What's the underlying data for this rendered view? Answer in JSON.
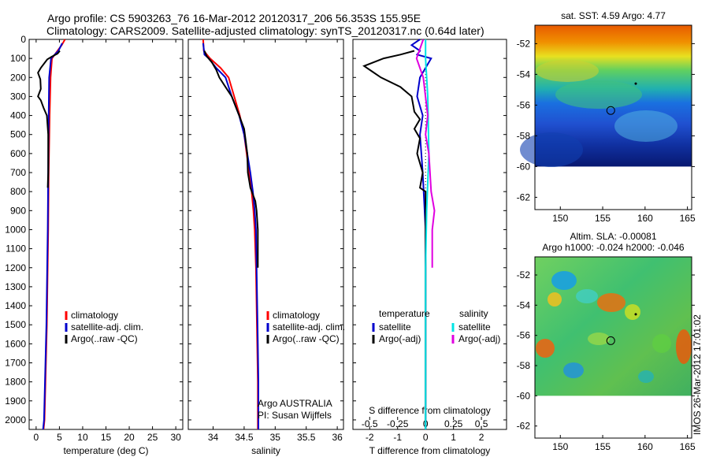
{
  "header": {
    "line1": "Argo profile: CS 5903263_76 16-Mar-2012 20120317_206 56.353S 155.95E",
    "line2": "Climatology: CARS2009. Satellite-adjusted climatology: synTS_20120317.nc (0.64d later)"
  },
  "depth_ticks": [
    0,
    100,
    200,
    300,
    400,
    500,
    600,
    700,
    800,
    900,
    1000,
    1100,
    1200,
    1300,
    1400,
    1500,
    1600,
    1700,
    1800,
    1900,
    2000
  ],
  "chart_data": [
    {
      "type": "line",
      "id": "temperature",
      "xlabel": "temperature (deg C)",
      "ylabel": "",
      "xlim": [
        -1.5,
        31.5
      ],
      "ylim": [
        2050,
        0
      ],
      "xticks": [
        0,
        5,
        10,
        15,
        20,
        25,
        30
      ],
      "legend": [
        "climatology",
        "satellite-adj. clim.",
        "Argo(..raw -QC)"
      ],
      "series": [
        {
          "name": "climatology",
          "color": "#ff0000",
          "points": [
            [
              6.2,
              0
            ],
            [
              5.5,
              30
            ],
            [
              4.6,
              60
            ],
            [
              3.4,
              100
            ],
            [
              3.1,
              200
            ],
            [
              2.9,
              400
            ],
            [
              2.7,
              700
            ],
            [
              2.6,
              1000
            ],
            [
              2.3,
              1500
            ],
            [
              2.0,
              1800
            ],
            [
              1.8,
              2000
            ],
            [
              1.6,
              2050
            ]
          ]
        },
        {
          "name": "satellite-adj. clim.",
          "color": "#0000cc",
          "points": [
            [
              5.6,
              20
            ],
            [
              4.8,
              60
            ],
            [
              3.2,
              100
            ],
            [
              2.8,
              200
            ],
            [
              2.7,
              400
            ],
            [
              2.6,
              700
            ],
            [
              2.5,
              1000
            ],
            [
              2.2,
              1500
            ],
            [
              1.9,
              1800
            ],
            [
              1.7,
              2000
            ],
            [
              1.5,
              2050
            ]
          ]
        },
        {
          "name": "Argo(..raw -QC)",
          "color": "#000000",
          "points": [
            [
              5.1,
              60
            ],
            [
              4.6,
              75
            ],
            [
              3.4,
              90
            ],
            [
              2.4,
              105
            ],
            [
              1.0,
              150
            ],
            [
              0.4,
              175
            ],
            [
              0.9,
              210
            ],
            [
              1.0,
              260
            ],
            [
              0.4,
              300
            ],
            [
              1.0,
              320
            ],
            [
              1.6,
              360
            ],
            [
              2.3,
              400
            ],
            [
              2.6,
              500
            ],
            [
              2.6,
              700
            ],
            [
              2.5,
              780
            ]
          ]
        }
      ]
    },
    {
      "type": "line",
      "id": "salinity",
      "xlabel": "salinity",
      "ylabel": "",
      "xlim": [
        33.6,
        36.1
      ],
      "ylim": [
        2050,
        0
      ],
      "xticks": [
        34,
        34.5,
        35,
        35.5,
        36
      ],
      "xticklabels": [
        "34",
        "34.5",
        "35",
        "35.5",
        "36"
      ],
      "legend": [
        "climatology",
        "satellite-adj. clim.",
        "Argo(..raw -QC)"
      ],
      "footer": [
        "Argo AUSTRALIA",
        "PI: Susan Wijffels"
      ],
      "series": [
        {
          "name": "climatology",
          "color": "#ff0000",
          "points": [
            [
              33.84,
              0
            ],
            [
              33.85,
              60
            ],
            [
              33.95,
              100
            ],
            [
              34.12,
              150
            ],
            [
              34.25,
              200
            ],
            [
              34.34,
              300
            ],
            [
              34.43,
              400
            ],
            [
              34.5,
              500
            ],
            [
              34.54,
              600
            ],
            [
              34.58,
              700
            ],
            [
              34.62,
              800
            ],
            [
              34.65,
              900
            ],
            [
              34.67,
              1000
            ],
            [
              34.69,
              1200
            ],
            [
              34.7,
              1400
            ],
            [
              34.71,
              1600
            ],
            [
              34.72,
              1800
            ],
            [
              34.72,
              2000
            ],
            [
              34.72,
              2050
            ]
          ]
        },
        {
          "name": "satellite-adj. clim.",
          "color": "#0000cc",
          "points": [
            [
              33.84,
              20
            ],
            [
              33.86,
              80
            ],
            [
              33.93,
              100
            ],
            [
              34.05,
              150
            ],
            [
              34.2,
              200
            ],
            [
              34.3,
              300
            ],
            [
              34.42,
              400
            ],
            [
              34.5,
              500
            ],
            [
              34.55,
              600
            ],
            [
              34.6,
              700
            ],
            [
              34.64,
              800
            ],
            [
              34.67,
              900
            ],
            [
              34.69,
              1000
            ],
            [
              34.7,
              1200
            ],
            [
              34.71,
              1400
            ],
            [
              34.72,
              1600
            ],
            [
              34.73,
              1800
            ],
            [
              34.73,
              2000
            ],
            [
              34.73,
              2050
            ]
          ]
        },
        {
          "name": "Argo(..raw -QC)",
          "color": "#000000",
          "points": [
            [
              33.86,
              60
            ],
            [
              33.9,
              90
            ],
            [
              33.98,
              120
            ],
            [
              34.05,
              160
            ],
            [
              34.1,
              200
            ],
            [
              34.2,
              250
            ],
            [
              34.3,
              300
            ],
            [
              34.42,
              400
            ],
            [
              34.5,
              470
            ],
            [
              34.52,
              520
            ],
            [
              34.55,
              600
            ],
            [
              34.56,
              700
            ],
            [
              34.6,
              780
            ],
            [
              34.68,
              850
            ],
            [
              34.7,
              900
            ],
            [
              34.72,
              1000
            ],
            [
              34.72,
              1100
            ],
            [
              34.72,
              1200
            ]
          ]
        }
      ]
    },
    {
      "type": "line",
      "id": "difference",
      "xlabel": "T difference from climatology",
      "xlabel_top": "S difference from climatology",
      "ylabel": "",
      "xlim": [
        -2.6,
        2.9
      ],
      "ylim": [
        2050,
        0
      ],
      "xticks": [
        -2,
        -1,
        0,
        1,
        2
      ],
      "xticks_top": [
        -0.5,
        -0.25,
        0,
        0.25,
        0.5
      ],
      "xticklabels_top": [
        "-0.5",
        "-0.25",
        "0",
        "0.25",
        "0.5"
      ],
      "legend_left_header": "temperature",
      "legend_right_header": "salinity",
      "legend_left": [
        "satellite",
        "Argo(-adj)"
      ],
      "legend_right": [
        "satellite",
        "Argo(-adj)"
      ],
      "series": [
        {
          "name": "T satellite",
          "color": "#0000cc",
          "points": [
            [
              -0.2,
              0
            ],
            [
              -0.5,
              30
            ],
            [
              -0.2,
              60
            ],
            [
              -0.3,
              80
            ],
            [
              0.2,
              100
            ],
            [
              -0.2,
              200
            ],
            [
              -0.3,
              300
            ],
            [
              -0.1,
              400
            ],
            [
              -0.2,
              500
            ],
            [
              -0.1,
              700
            ],
            [
              0,
              1000
            ],
            [
              0,
              1500
            ],
            [
              0,
              2050
            ]
          ]
        },
        {
          "name": "T Argo(-adj)",
          "color": "#000000",
          "points": [
            [
              -0.4,
              60
            ],
            [
              -0.9,
              80
            ],
            [
              -1.5,
              100
            ],
            [
              -2.2,
              140
            ],
            [
              -1.9,
              170
            ],
            [
              -1.6,
              200
            ],
            [
              -0.9,
              250
            ],
            [
              -0.5,
              300
            ],
            [
              -0.4,
              380
            ],
            [
              -0.2,
              420
            ],
            [
              -0.4,
              470
            ],
            [
              -0.2,
              520
            ],
            [
              -0.3,
              600
            ],
            [
              -0.1,
              700
            ],
            [
              -0.2,
              780
            ],
            [
              0,
              800
            ],
            [
              0,
              1200
            ],
            [
              0,
              2050
            ]
          ]
        },
        {
          "name": "S satellite",
          "color": "#00e5e5",
          "points": [
            [
              0,
              0
            ],
            [
              0,
              100
            ],
            [
              0.02,
              300
            ],
            [
              0.03,
              600
            ],
            [
              0.01,
              900
            ],
            [
              0,
              1200
            ],
            [
              0,
              1600
            ],
            [
              0,
              2050
            ]
          ]
        },
        {
          "name": "S Argo(-adj)",
          "color": "#e000e0",
          "points": [
            [
              -0.02,
              0
            ],
            [
              -0.08,
              100
            ],
            [
              -0.02,
              200
            ],
            [
              0.02,
              400
            ],
            [
              0,
              500
            ],
            [
              0.03,
              600
            ],
            [
              0.05,
              800
            ],
            [
              0.08,
              900
            ],
            [
              0.06,
              1000
            ],
            [
              0.06,
              1200
            ]
          ]
        }
      ]
    },
    {
      "type": "heatmap",
      "id": "sst_map",
      "title": "sat. SST: 4.59 Argo: 4.77",
      "xlim": [
        147,
        165.5
      ],
      "ylim": [
        -62.8,
        -50.8
      ],
      "xticks": [
        150,
        155,
        160,
        165
      ],
      "yticks": [
        -52,
        -54,
        -56,
        -58,
        -60,
        -62
      ],
      "marker": [
        155.95,
        -56.35
      ]
    },
    {
      "type": "heatmap",
      "id": "sla_map",
      "title": "Altim. SLA: -0.00081",
      "subtitle": "Argo h1000: -0.024 h2000: -0.046",
      "xlim": [
        147,
        165.5
      ],
      "ylim": [
        -62.8,
        -50.8
      ],
      "xticks": [
        150,
        155,
        160,
        165
      ],
      "yticks": [
        -52,
        -54,
        -56,
        -58,
        -60,
        -62
      ],
      "marker": [
        155.95,
        -56.35
      ],
      "side_text": "IMOS 26-Mar-2012 17:01:02"
    }
  ]
}
